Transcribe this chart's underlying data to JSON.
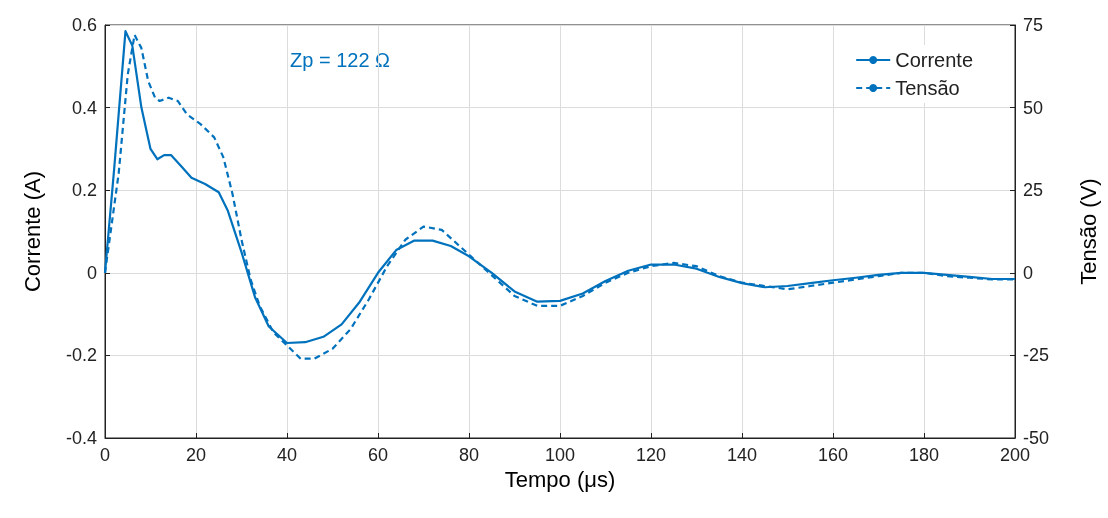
{
  "chart_data": {
    "type": "line",
    "xlabel": "Tempo (μs)",
    "ylabel": "Corrente (A)",
    "y2label": "Tensão (V)",
    "annotations": [
      "Zp = 122 Ω"
    ],
    "xlim": [
      0,
      200
    ],
    "xticks": [
      0,
      20,
      40,
      60,
      80,
      100,
      120,
      140,
      160,
      180,
      200
    ],
    "ylim": [
      -0.4,
      0.6
    ],
    "yticks": [
      -0.4,
      -0.2,
      0,
      0.2,
      0.4,
      0.6
    ],
    "y2lim": [
      -50,
      75
    ],
    "y2ticks": [
      -50,
      -25,
      0,
      25,
      50,
      75
    ],
    "grid": true,
    "legend": "top right",
    "marker": "none",
    "series": [
      {
        "name": "Corrente",
        "color": "#0072bd",
        "line_style": "solid",
        "x": [
          0,
          2,
          4.5,
          6,
          8,
          10,
          11.5,
          13,
          14.5,
          17,
          19,
          22,
          25,
          27,
          30,
          33,
          36,
          40,
          44,
          48,
          52,
          56,
          60,
          64,
          68,
          72,
          76,
          80,
          85,
          90,
          95,
          100,
          105,
          110,
          115,
          120,
          125,
          130,
          135,
          140,
          145,
          150,
          155,
          160,
          165,
          170,
          175,
          180,
          185,
          190,
          195,
          200
        ],
        "values": [
          0,
          0.25,
          0.585,
          0.55,
          0.4,
          0.3,
          0.275,
          0.285,
          0.285,
          0.255,
          0.23,
          0.215,
          0.195,
          0.15,
          0.05,
          -0.06,
          -0.13,
          -0.17,
          -0.168,
          -0.155,
          -0.125,
          -0.07,
          0,
          0.055,
          0.078,
          0.078,
          0.065,
          0.04,
          0,
          -0.045,
          -0.07,
          -0.068,
          -0.05,
          -0.02,
          0.005,
          0.02,
          0.02,
          0.01,
          -0.01,
          -0.025,
          -0.035,
          -0.032,
          -0.025,
          -0.018,
          -0.012,
          -0.005,
          0,
          0,
          -0.005,
          -0.01,
          -0.015,
          -0.015
        ]
      },
      {
        "name": "Tensão",
        "color": "#0072bd",
        "line_style": "dashed",
        "axis": "y2",
        "x": [
          0,
          3,
          5,
          6.5,
          8,
          9.5,
          11,
          12,
          14,
          16,
          18,
          21,
          24,
          26,
          28,
          30,
          32,
          34,
          37,
          40,
          43,
          46,
          50,
          54,
          58,
          62,
          66,
          70,
          74,
          78,
          82,
          86,
          90,
          95,
          100,
          105,
          110,
          115,
          120,
          125,
          130,
          135,
          140,
          145,
          150,
          155,
          160,
          165,
          170,
          175,
          180,
          185,
          190,
          195,
          200
        ],
        "values": [
          0,
          30,
          60,
          72,
          68,
          58,
          53,
          52,
          53,
          52,
          48,
          45,
          41,
          35,
          24,
          10,
          -2,
          -10,
          -18,
          -22,
          -26,
          -26,
          -23,
          -17,
          -8,
          2,
          10,
          14,
          13,
          8,
          3,
          -2,
          -7,
          -10,
          -10,
          -7,
          -3,
          0,
          2,
          3,
          2,
          -1,
          -3,
          -4,
          -5,
          -4,
          -3,
          -2,
          -1,
          0,
          0,
          -1,
          -1.5,
          -2,
          -2
        ]
      }
    ]
  }
}
